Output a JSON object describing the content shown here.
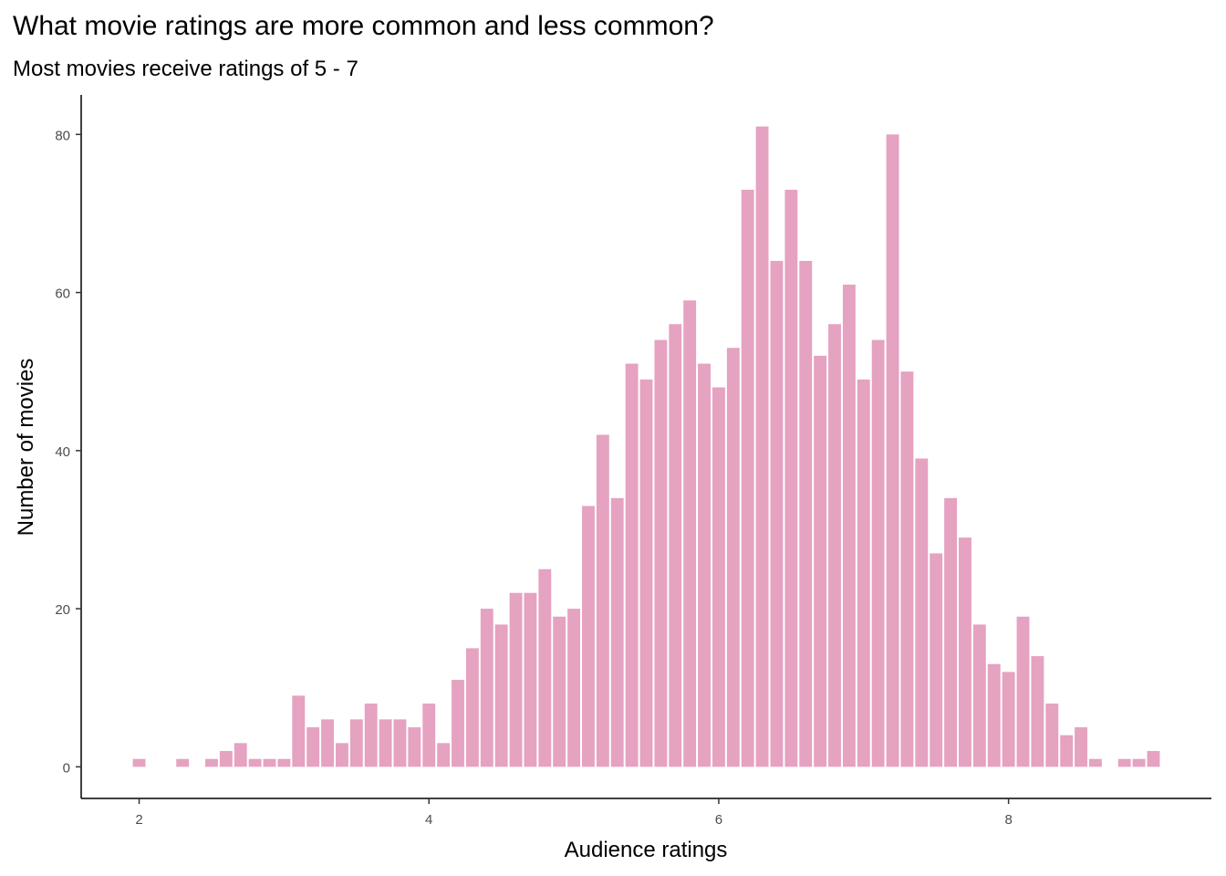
{
  "chart_data": {
    "type": "bar",
    "title": "What movie ratings are more common and less common?",
    "subtitle": "Most movies receive ratings of 5 - 7",
    "xlabel": "Audience ratings",
    "ylabel": "Number of movies",
    "bar_color": "#e5a2c1",
    "axis_color": "#000000",
    "tick_label_color": "#4d4d4d",
    "grid": false,
    "legend": "none",
    "bin_width": 0.1,
    "xlim": [
      1.6,
      9.4
    ],
    "ylim": [
      -4,
      85
    ],
    "x_ticks": [
      2,
      4,
      6,
      8
    ],
    "y_ticks": [
      0,
      20,
      40,
      60,
      80
    ],
    "x": [
      2.0,
      2.3,
      2.5,
      2.6,
      2.7,
      2.8,
      2.9,
      3.0,
      3.1,
      3.2,
      3.3,
      3.4,
      3.5,
      3.6,
      3.7,
      3.8,
      3.9,
      4.0,
      4.1,
      4.2,
      4.3,
      4.4,
      4.5,
      4.6,
      4.7,
      4.8,
      4.9,
      5.0,
      5.1,
      5.2,
      5.3,
      5.4,
      5.5,
      5.6,
      5.7,
      5.8,
      5.9,
      6.0,
      6.1,
      6.2,
      6.3,
      6.4,
      6.5,
      6.6,
      6.7,
      6.8,
      6.9,
      7.0,
      7.1,
      7.2,
      7.3,
      7.4,
      7.5,
      7.6,
      7.7,
      7.8,
      7.9,
      8.0,
      8.1,
      8.2,
      8.3,
      8.4,
      8.5,
      8.6,
      8.8,
      8.9,
      9.0
    ],
    "values": [
      1,
      1,
      1,
      2,
      3,
      1,
      1,
      1,
      9,
      5,
      6,
      3,
      6,
      8,
      6,
      6,
      5,
      8,
      3,
      11,
      15,
      20,
      18,
      22,
      22,
      25,
      19,
      20,
      33,
      42,
      34,
      51,
      49,
      54,
      56,
      59,
      51,
      48,
      53,
      73,
      81,
      64,
      73,
      64,
      52,
      56,
      61,
      49,
      54,
      80,
      50,
      39,
      27,
      34,
      29,
      18,
      13,
      12,
      19,
      14,
      8,
      4,
      5,
      1,
      1,
      1,
      2
    ]
  }
}
